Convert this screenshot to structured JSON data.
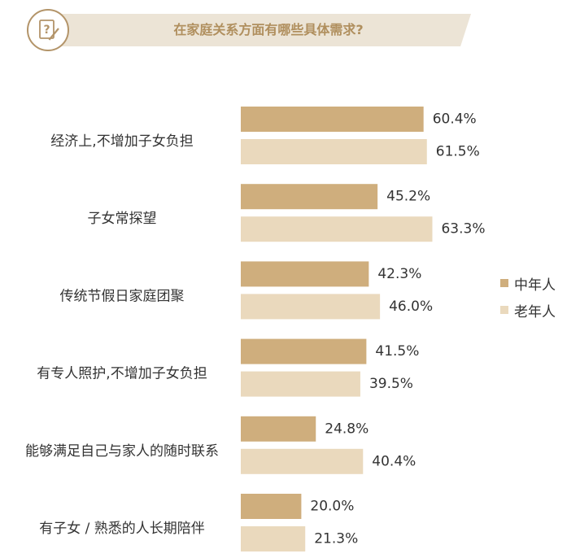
{
  "header": {
    "title": "在家庭关系方面有哪些具体需求?"
  },
  "colors": {
    "middle_aged": "#cfae7d",
    "elderly": "#ead9bd",
    "header_band": "#ece4d6",
    "header_text": "#b08f5e",
    "label_text": "#333333"
  },
  "legend": {
    "items": [
      {
        "label": "中年人"
      },
      {
        "label": "老年人"
      }
    ]
  },
  "chart_data": {
    "type": "bar",
    "orientation": "horizontal",
    "title": "在家庭关系方面有哪些具体需求?",
    "categories": [
      "经济上,不增加子女负担",
      "子女常探望",
      "传统节假日家庭团聚",
      "有专人照护,不增加子女负担",
      "能够满足自己与家人的随时联系",
      "有子女 / 熟悉的人长期陪伴"
    ],
    "series": [
      {
        "name": "中年人",
        "values": [
          60.4,
          45.2,
          42.3,
          41.5,
          24.8,
          20.0
        ],
        "labels": [
          "60.4%",
          "45.2%",
          "42.3%",
          "41.5%",
          "24.8%",
          "20.0%"
        ]
      },
      {
        "name": "老年人",
        "values": [
          61.5,
          63.3,
          46.0,
          39.5,
          40.4,
          21.3
        ],
        "labels": [
          "61.5%",
          "63.3%",
          "46.0%",
          "39.5%",
          "40.4%",
          "21.3%"
        ]
      }
    ],
    "xlim": [
      0,
      100
    ],
    "grid": false,
    "legend_position": "right"
  }
}
